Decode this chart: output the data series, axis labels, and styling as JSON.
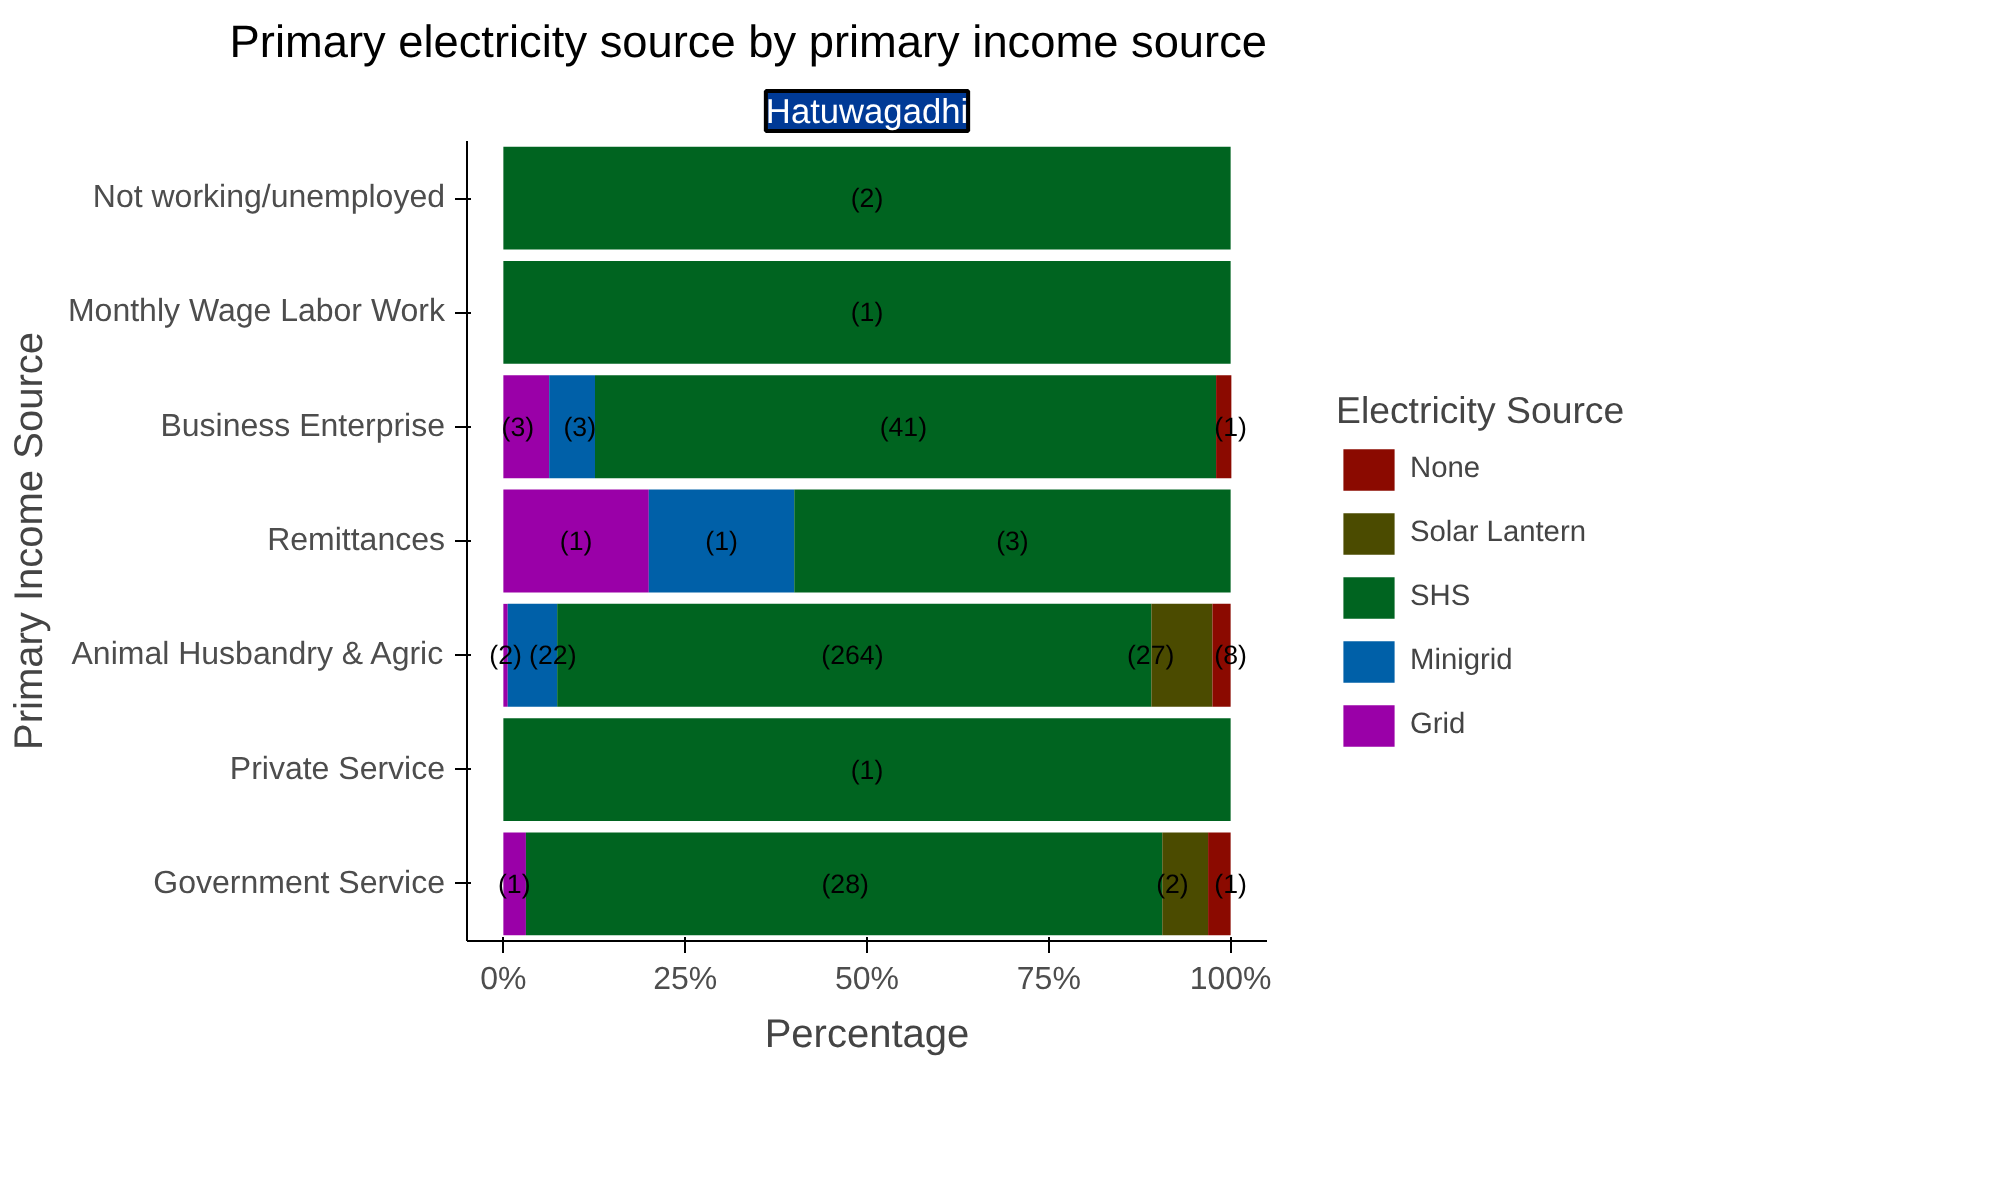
{
  "chart_data": {
    "type": "bar",
    "orientation": "horizontal",
    "stacked": true,
    "title": "Primary electricity source by primary income source",
    "subtitle": "Hatuwagadhi",
    "xlabel": "Percentage",
    "ylabel": "Primary Income Source",
    "legend_title": "Electricity Source",
    "categories": [
      "Not working/unemployed",
      "Monthly Wage Labor Work",
      "Business Enterprise",
      "Remittances",
      "Animal Husbandry & Agric",
      "Private Service",
      "Government Service"
    ],
    "series": [
      {
        "name": "Grid",
        "color": "#9a00a8",
        "values": [
          null,
          null,
          6.3,
          20,
          0.6,
          null,
          3.1
        ]
      },
      {
        "name": "Minigrid",
        "color": "#0060a8",
        "values": [
          null,
          null,
          6.3,
          20,
          6.8,
          null,
          null
        ]
      },
      {
        "name": "SHS",
        "color": "#006420",
        "values": [
          100,
          100,
          85.4,
          60,
          81.7,
          100,
          87.5
        ]
      },
      {
        "name": "Solar Lantern",
        "color": "#4b4b00",
        "values": [
          null,
          null,
          null,
          null,
          8.4,
          null,
          6.3
        ]
      },
      {
        "name": "None",
        "color": "#8b0a00",
        "values": [
          null,
          null,
          2.1,
          null,
          2.5,
          null,
          3.1
        ]
      }
    ],
    "annotations": [
      {
        "text": "(2)",
        "x": 50,
        "y": "Not working/unemployed"
      },
      {
        "text": "(1)",
        "x": 50,
        "y": "Monthly Wage Labor Work"
      },
      {
        "text": "(3)",
        "x": 2,
        "y": "Business Enterprise"
      },
      {
        "text": "(3)",
        "x": 10.5,
        "y": "Business Enterprise"
      },
      {
        "text": "(41)",
        "x": 55,
        "y": "Business Enterprise"
      },
      {
        "text": "(1)",
        "x": 100,
        "y": "Business Enterprise"
      },
      {
        "text": "(1)",
        "x": 10,
        "y": "Remittances"
      },
      {
        "text": "(1)",
        "x": 30,
        "y": "Remittances"
      },
      {
        "text": "(3)",
        "x": 70,
        "y": "Remittances"
      },
      {
        "text": "(2)",
        "x": 0.3,
        "y": "Animal Husbandry & Agric"
      },
      {
        "text": "(22)",
        "x": 6.8,
        "y": "Animal Husbandry & Agric"
      },
      {
        "text": "(264)",
        "x": 48,
        "y": "Animal Husbandry & Agric"
      },
      {
        "text": "(27)",
        "x": 89,
        "y": "Animal Husbandry & Agric"
      },
      {
        "text": "(8)",
        "x": 100,
        "y": "Animal Husbandry & Agric"
      },
      {
        "text": "(1)",
        "x": 50,
        "y": "Private Service"
      },
      {
        "text": "(1)",
        "x": 1.5,
        "y": "Government Service"
      },
      {
        "text": "(28)",
        "x": 47,
        "y": "Government Service"
      },
      {
        "text": "(2)",
        "x": 92,
        "y": "Government Service"
      },
      {
        "text": "(1)",
        "x": 100,
        "y": "Government Service"
      }
    ],
    "xlim": [
      -5,
      105
    ],
    "xticks": [
      {
        "value": 0,
        "label": "0%"
      },
      {
        "value": 25,
        "label": "25%"
      },
      {
        "value": 50,
        "label": "50%"
      },
      {
        "value": 75,
        "label": "75%"
      },
      {
        "value": 100,
        "label": "100%"
      }
    ],
    "legend": "right",
    "grid": false
  }
}
